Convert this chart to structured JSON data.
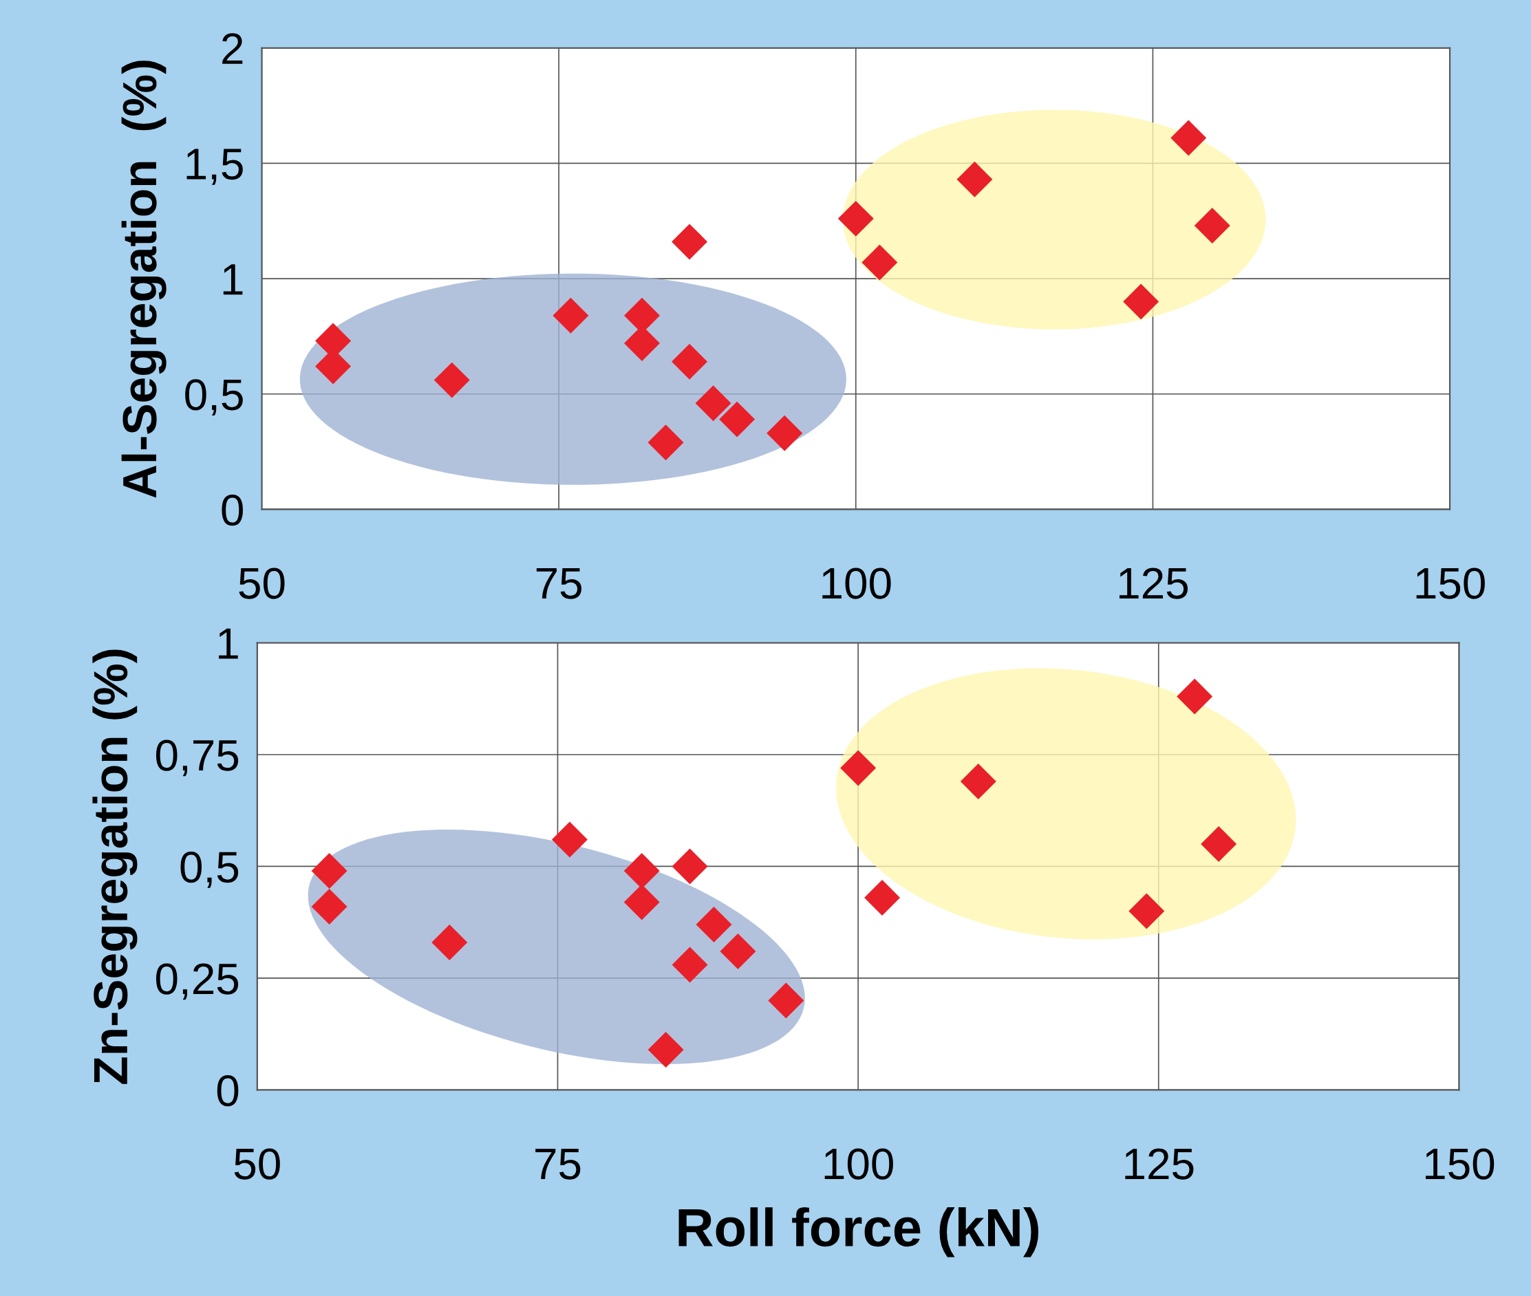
{
  "chart_data": [
    {
      "type": "scatter",
      "ylabel": "Al-Segregation  (%)",
      "marker": "diamond",
      "grid": true,
      "legend": false,
      "xlim": [
        50,
        150
      ],
      "xticks": [
        50,
        75,
        100,
        125,
        150
      ],
      "ylim": [
        0,
        2
      ],
      "yticks": [
        0,
        {
          "value": 0.5,
          "label": "0,5"
        },
        1,
        {
          "value": 1.5,
          "label": "1,5"
        },
        2
      ],
      "x": [
        56,
        56,
        66,
        76,
        82,
        82,
        86,
        86,
        88,
        84,
        90,
        94,
        100,
        102,
        110,
        124,
        128,
        130
      ],
      "series": [
        {
          "color": "#e8202a",
          "values": [
            0.73,
            0.62,
            0.56,
            0.84,
            0.84,
            0.72,
            1.16,
            0.64,
            0.46,
            0.29,
            0.39,
            0.33,
            1.26,
            1.07,
            1.43,
            0.9,
            1.61,
            1.23
          ]
        }
      ]
    },
    {
      "type": "scatter",
      "xlabel": "Roll force (kN)",
      "ylabel": "Zn-Segregation (%)",
      "marker": "diamond",
      "grid": true,
      "legend": false,
      "xlim": [
        50,
        150
      ],
      "xticks": [
        50,
        75,
        100,
        125,
        150
      ],
      "ylim": [
        0,
        1
      ],
      "yticks": [
        0,
        {
          "value": 0.25,
          "label": "0,25"
        },
        {
          "value": 0.5,
          "label": "0,5"
        },
        {
          "value": 0.75,
          "label": "0,75"
        },
        1
      ],
      "x": [
        56,
        56,
        66,
        76,
        82,
        82,
        86,
        86,
        88,
        84,
        90,
        94,
        100,
        102,
        110,
        124,
        128,
        130
      ],
      "series": [
        {
          "color": "#e8202a",
          "values": [
            0.49,
            0.41,
            0.33,
            0.56,
            0.49,
            0.42,
            0.5,
            0.28,
            0.37,
            0.09,
            0.31,
            0.2,
            0.72,
            0.43,
            0.69,
            0.4,
            0.88,
            0.55
          ]
        }
      ]
    }
  ]
}
